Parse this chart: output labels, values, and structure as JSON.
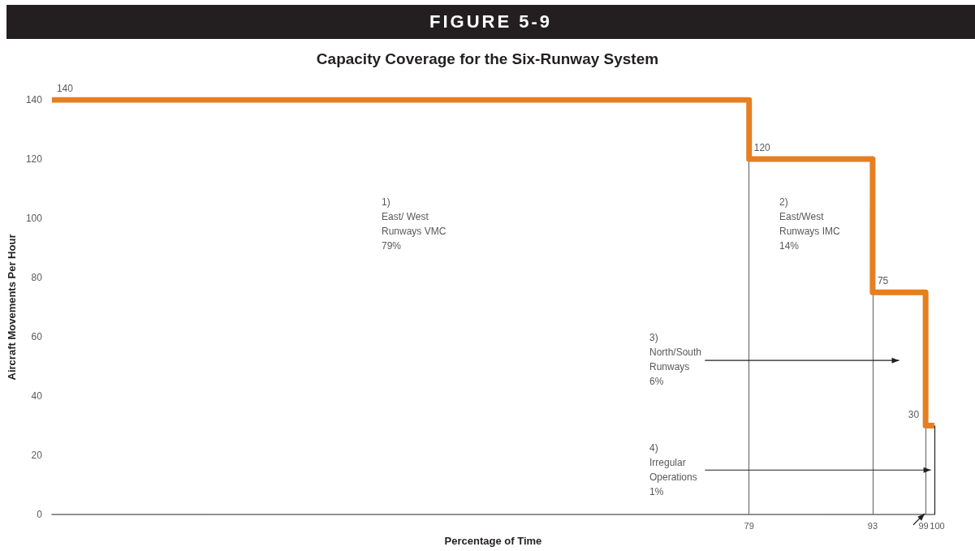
{
  "chart_data": {
    "type": "step",
    "title": "FIGURE 5-9",
    "subtitle": "Capacity Coverage for the Six-Runway System",
    "xlabel": "Percentage of Time",
    "ylabel": "Aircraft Movements Per Hour",
    "x": [
      0,
      79,
      93,
      99,
      100
    ],
    "series": [
      {
        "color": "#e67e22",
        "values": [
          140,
          120,
          75,
          30,
          30
        ],
        "value_labels": [
          "140",
          "120",
          "75",
          "30",
          null
        ]
      }
    ],
    "xlim": [
      0,
      100
    ],
    "xticks": [
      79,
      93,
      99,
      100
    ],
    "ylim": [
      0,
      140
    ],
    "yticks": [
      0,
      20,
      40,
      60,
      80,
      100,
      120,
      140
    ],
    "grid": false,
    "marker": "none",
    "line_style": "solid",
    "ref_lines": [
      {
        "axis": "x",
        "value": 79,
        "color": "#6d6e71"
      },
      {
        "axis": "x",
        "value": 93,
        "color": "#6d6e71"
      },
      {
        "axis": "x",
        "value": 99,
        "color": "#6d6e71"
      },
      {
        "axis": "x",
        "value": 100,
        "color": "#231f20"
      }
    ],
    "annotations": [
      "1)\nEast/ West\nRunways VMC\n79%",
      "2)\nEast/West\nRunways IMC\n14%",
      "3)\nNorth/South\nRunways\n6%",
      "4)\nIrregular\nOperations\n1%"
    ]
  }
}
